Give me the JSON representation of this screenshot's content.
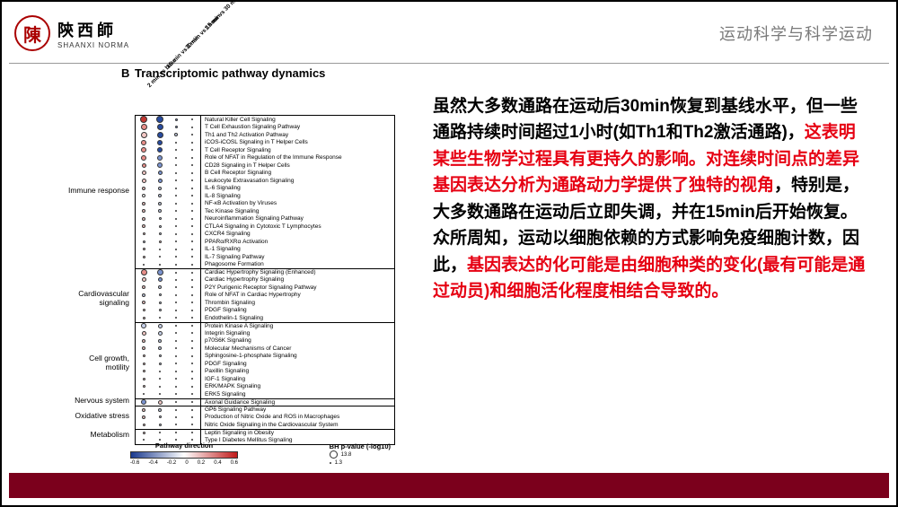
{
  "header": {
    "logo_char": "陳",
    "logo_cn": "陝西師",
    "logo_en": "SHAANXI NORMA",
    "right_text": "运动科学与科学运动"
  },
  "body_text": {
    "p1a": "虽然大多数通路在运动后30min恢复到基线水平，但一些通路持续时间超过1小时(如Th1和Th2激活通路)，",
    "p1b_red": "这表明某些生物学过程具有更持久的影响。对连续时间点的差异基因表达分析为通路动力学提供了独特的视角",
    "p1c": "，特别是，大多数通路在运动后立即失调，并在15min后开始恢复。众所周知，运动以细胞依赖的方式影响免疫细胞计数，因此，",
    "p1d_red": "基因表达的化可能是由细胞种类的变化(最有可能是通过动员)和细胞活化程度相结合导致的。"
  },
  "figure": {
    "panel_label": "B",
    "title": "Transcriptomic pathway dynamics",
    "columns": [
      "2 min vs base",
      "15 min vs 2 min",
      "30 min vs 15 min",
      "1 hour vs 30 min"
    ],
    "legend": {
      "direction_label": "Pathway direction",
      "direction_ticks": [
        "-0.6",
        "-0.4",
        "-0.2",
        "0",
        "0.2",
        "0.4",
        "0.6"
      ],
      "pval_label": "BH p-value (-log10)",
      "pval_sizes": [
        {
          "size": 9,
          "label": "13.8"
        },
        {
          "size": 2,
          "label": "1.3"
        }
      ]
    },
    "colors": {
      "neg_strong": "#274b9f",
      "neg_mid": "#7a93cf",
      "neg_weak": "#c7d1ea",
      "neutral": "#ffffff",
      "pos_weak": "#f3c8c5",
      "pos_mid": "#e88e89",
      "pos_strong": "#c23631"
    },
    "categories": [
      {
        "name": "Immune response",
        "start": 0,
        "end": 20
      },
      {
        "name": "Cardiovascular signaling",
        "start": 20,
        "end": 27
      },
      {
        "name": "Cell growth, motility",
        "start": 27,
        "end": 37
      },
      {
        "name": "Nervous system",
        "start": 37,
        "end": 38
      },
      {
        "name": "Oxidative stress",
        "start": 38,
        "end": 41
      },
      {
        "name": "Metabolism",
        "start": 41,
        "end": 43
      }
    ],
    "rows": [
      {
        "name": "Natural Killer Cell Signaling",
        "d": [
          {
            "c": "pos_strong",
            "s": 8
          },
          {
            "c": "neg_strong",
            "s": 8
          },
          {
            "c": "neg_mid",
            "s": 3
          },
          {
            "c": "neutral",
            "s": 1
          }
        ]
      },
      {
        "name": "T Cell Exhaustion Signaling Pathway",
        "d": [
          {
            "c": "pos_mid",
            "s": 7
          },
          {
            "c": "neg_strong",
            "s": 7
          },
          {
            "c": "neg_mid",
            "s": 3
          },
          {
            "c": "neutral",
            "s": 1
          }
        ]
      },
      {
        "name": "Th1 and Th2 Activation Pathway",
        "d": [
          {
            "c": "pos_weak",
            "s": 7
          },
          {
            "c": "neg_strong",
            "s": 7
          },
          {
            "c": "neg_weak",
            "s": 4
          },
          {
            "c": "neg_weak",
            "s": 2
          }
        ]
      },
      {
        "name": "iCOS-iCOSL Signaling in T Helper Cells",
        "d": [
          {
            "c": "pos_mid",
            "s": 6
          },
          {
            "c": "neg_strong",
            "s": 6
          },
          {
            "c": "neutral",
            "s": 2
          },
          {
            "c": "neutral",
            "s": 1
          }
        ]
      },
      {
        "name": "T Cell Receptor Signaling",
        "d": [
          {
            "c": "pos_mid",
            "s": 6
          },
          {
            "c": "neg_strong",
            "s": 6
          },
          {
            "c": "neutral",
            "s": 2
          },
          {
            "c": "neutral",
            "s": 1
          }
        ]
      },
      {
        "name": "Role of NFAT in Regulation of the Immune Response",
        "d": [
          {
            "c": "pos_mid",
            "s": 6
          },
          {
            "c": "neg_mid",
            "s": 6
          },
          {
            "c": "neutral",
            "s": 2
          },
          {
            "c": "neutral",
            "s": 1
          }
        ]
      },
      {
        "name": "CD28 Signaling in T Helper Cells",
        "d": [
          {
            "c": "pos_mid",
            "s": 5
          },
          {
            "c": "neg_mid",
            "s": 6
          },
          {
            "c": "neutral",
            "s": 2
          },
          {
            "c": "neutral",
            "s": 1
          }
        ]
      },
      {
        "name": "B Cell Receptor Signaling",
        "d": [
          {
            "c": "pos_weak",
            "s": 5
          },
          {
            "c": "neg_mid",
            "s": 5
          },
          {
            "c": "neutral",
            "s": 2
          },
          {
            "c": "neutral",
            "s": 1
          }
        ]
      },
      {
        "name": "Leukocyte Extravasation Signaling",
        "d": [
          {
            "c": "pos_weak",
            "s": 5
          },
          {
            "c": "neg_mid",
            "s": 5
          },
          {
            "c": "neutral",
            "s": 2
          },
          {
            "c": "neutral",
            "s": 1
          }
        ]
      },
      {
        "name": "IL-6 Signaling",
        "d": [
          {
            "c": "pos_weak",
            "s": 4
          },
          {
            "c": "neg_weak",
            "s": 4
          },
          {
            "c": "neutral",
            "s": 2
          },
          {
            "c": "neutral",
            "s": 1
          }
        ]
      },
      {
        "name": "IL-8 Signaling",
        "d": [
          {
            "c": "neutral",
            "s": 4
          },
          {
            "c": "neg_weak",
            "s": 4
          },
          {
            "c": "neutral",
            "s": 1
          },
          {
            "c": "neutral",
            "s": 1
          }
        ]
      },
      {
        "name": "NF-κB Activation by Viruses",
        "d": [
          {
            "c": "pos_weak",
            "s": 4
          },
          {
            "c": "neg_weak",
            "s": 4
          },
          {
            "c": "neutral",
            "s": 1
          },
          {
            "c": "neutral",
            "s": 1
          }
        ]
      },
      {
        "name": "Tec Kinase Signaling",
        "d": [
          {
            "c": "pos_weak",
            "s": 4
          },
          {
            "c": "neg_weak",
            "s": 4
          },
          {
            "c": "neutral",
            "s": 1
          },
          {
            "c": "neutral",
            "s": 1
          }
        ]
      },
      {
        "name": "Neuroinflammation Signaling Pathway",
        "d": [
          {
            "c": "pos_weak",
            "s": 4
          },
          {
            "c": "neg_weak",
            "s": 3
          },
          {
            "c": "neutral",
            "s": 1
          },
          {
            "c": "neutral",
            "s": 1
          }
        ]
      },
      {
        "name": "CTLA4 Signaling in Cytotoxic T Lymphocytes",
        "d": [
          {
            "c": "pos_weak",
            "s": 4
          },
          {
            "c": "neg_weak",
            "s": 3
          },
          {
            "c": "neutral",
            "s": 1
          },
          {
            "c": "neutral",
            "s": 1
          }
        ]
      },
      {
        "name": "CXCR4 Signaling",
        "d": [
          {
            "c": "pos_weak",
            "s": 3
          },
          {
            "c": "neg_weak",
            "s": 3
          },
          {
            "c": "neutral",
            "s": 1
          },
          {
            "c": "neutral",
            "s": 1
          }
        ]
      },
      {
        "name": "PPARα/RXRα Activation",
        "d": [
          {
            "c": "neg_weak",
            "s": 3
          },
          {
            "c": "pos_weak",
            "s": 3
          },
          {
            "c": "neutral",
            "s": 1
          },
          {
            "c": "neutral",
            "s": 1
          }
        ]
      },
      {
        "name": "IL-1 Signaling",
        "d": [
          {
            "c": "pos_weak",
            "s": 3
          },
          {
            "c": "neg_weak",
            "s": 2
          },
          {
            "c": "neutral",
            "s": 1
          },
          {
            "c": "neutral",
            "s": 1
          }
        ]
      },
      {
        "name": "IL-7 Signaling Pathway",
        "d": [
          {
            "c": "pos_weak",
            "s": 3
          },
          {
            "c": "neg_weak",
            "s": 2
          },
          {
            "c": "neutral",
            "s": 1
          },
          {
            "c": "neutral",
            "s": 1
          }
        ]
      },
      {
        "name": "Phagosome Formation",
        "d": [
          {
            "c": "neutral",
            "s": 2
          },
          {
            "c": "neutral",
            "s": 2
          },
          {
            "c": "neutral",
            "s": 1
          },
          {
            "c": "neutral",
            "s": 1
          }
        ]
      },
      {
        "name": "Cardiac Hypertrophy Signaling (Enhanced)",
        "d": [
          {
            "c": "pos_mid",
            "s": 7
          },
          {
            "c": "neg_mid",
            "s": 7
          },
          {
            "c": "neutral",
            "s": 2
          },
          {
            "c": "neutral",
            "s": 1
          }
        ]
      },
      {
        "name": "Cardiac Hypertrophy Signaling",
        "d": [
          {
            "c": "pos_weak",
            "s": 5
          },
          {
            "c": "neg_mid",
            "s": 5
          },
          {
            "c": "neutral",
            "s": 2
          },
          {
            "c": "neutral",
            "s": 1
          }
        ]
      },
      {
        "name": "P2Y Purigenic Receptor Signaling Pathway",
        "d": [
          {
            "c": "pos_weak",
            "s": 4
          },
          {
            "c": "neg_weak",
            "s": 4
          },
          {
            "c": "neutral",
            "s": 1
          },
          {
            "c": "neutral",
            "s": 1
          }
        ]
      },
      {
        "name": "Role of NFAT in Cardiac Hypertrophy",
        "d": [
          {
            "c": "neg_weak",
            "s": 4
          },
          {
            "c": "neg_weak",
            "s": 3
          },
          {
            "c": "neutral",
            "s": 1
          },
          {
            "c": "neutral",
            "s": 1
          }
        ]
      },
      {
        "name": "Thrombin Signaling",
        "d": [
          {
            "c": "pos_weak",
            "s": 4
          },
          {
            "c": "neg_weak",
            "s": 3
          },
          {
            "c": "neutral",
            "s": 1
          },
          {
            "c": "neutral",
            "s": 1
          }
        ]
      },
      {
        "name": "PDGF Signaling",
        "d": [
          {
            "c": "pos_weak",
            "s": 3
          },
          {
            "c": "neg_weak",
            "s": 3
          },
          {
            "c": "neutral",
            "s": 1
          },
          {
            "c": "neutral",
            "s": 1
          }
        ]
      },
      {
        "name": "Endothelin-1 Signaling",
        "d": [
          {
            "c": "pos_weak",
            "s": 3
          },
          {
            "c": "neg_weak",
            "s": 2
          },
          {
            "c": "neutral",
            "s": 1
          },
          {
            "c": "neutral",
            "s": 1
          }
        ]
      },
      {
        "name": "Protein Kinase A Signaling",
        "d": [
          {
            "c": "neg_weak",
            "s": 6
          },
          {
            "c": "neg_weak",
            "s": 5
          },
          {
            "c": "neutral",
            "s": 2
          },
          {
            "c": "neutral",
            "s": 1
          }
        ]
      },
      {
        "name": "Integrin Signaling",
        "d": [
          {
            "c": "pos_weak",
            "s": 5
          },
          {
            "c": "neg_weak",
            "s": 5
          },
          {
            "c": "neutral",
            "s": 2
          },
          {
            "c": "neutral",
            "s": 1
          }
        ]
      },
      {
        "name": "p70S6K Signaling",
        "d": [
          {
            "c": "pos_weak",
            "s": 4
          },
          {
            "c": "neg_weak",
            "s": 4
          },
          {
            "c": "neutral",
            "s": 1
          },
          {
            "c": "neutral",
            "s": 1
          }
        ]
      },
      {
        "name": "Molecular Mechanisms of Cancer",
        "d": [
          {
            "c": "pos_weak",
            "s": 4
          },
          {
            "c": "neg_weak",
            "s": 4
          },
          {
            "c": "neutral",
            "s": 1
          },
          {
            "c": "neutral",
            "s": 1
          }
        ]
      },
      {
        "name": "Sphingosine-1-phosphate Signaling",
        "d": [
          {
            "c": "pos_weak",
            "s": 3
          },
          {
            "c": "neg_weak",
            "s": 3
          },
          {
            "c": "neutral",
            "s": 1
          },
          {
            "c": "neutral",
            "s": 1
          }
        ]
      },
      {
        "name": "PDGF Signaling",
        "d": [
          {
            "c": "pos_weak",
            "s": 3
          },
          {
            "c": "neg_weak",
            "s": 3
          },
          {
            "c": "neutral",
            "s": 1
          },
          {
            "c": "neutral",
            "s": 1
          }
        ]
      },
      {
        "name": "Paxillin Signaling",
        "d": [
          {
            "c": "pos_weak",
            "s": 3
          },
          {
            "c": "neg_weak",
            "s": 2
          },
          {
            "c": "neutral",
            "s": 1
          },
          {
            "c": "neutral",
            "s": 1
          }
        ]
      },
      {
        "name": "IGF-1 Signaling",
        "d": [
          {
            "c": "pos_weak",
            "s": 3
          },
          {
            "c": "neg_weak",
            "s": 2
          },
          {
            "c": "neutral",
            "s": 1
          },
          {
            "c": "neutral",
            "s": 1
          }
        ]
      },
      {
        "name": "ERK/MAPK Signaling",
        "d": [
          {
            "c": "pos_weak",
            "s": 3
          },
          {
            "c": "neg_weak",
            "s": 2
          },
          {
            "c": "neutral",
            "s": 1
          },
          {
            "c": "neutral",
            "s": 1
          }
        ]
      },
      {
        "name": "ERK5 Signaling",
        "d": [
          {
            "c": "pos_weak",
            "s": 2
          },
          {
            "c": "neg_weak",
            "s": 2
          },
          {
            "c": "neutral",
            "s": 1
          },
          {
            "c": "neutral",
            "s": 1
          }
        ]
      },
      {
        "name": "Axonal Guidance Signaling",
        "d": [
          {
            "c": "neg_mid",
            "s": 6
          },
          {
            "c": "pos_weak",
            "s": 5
          },
          {
            "c": "neutral",
            "s": 2
          },
          {
            "c": "neutral",
            "s": 1
          }
        ]
      },
      {
        "name": "GP6 Signaling Pathway",
        "d": [
          {
            "c": "pos_weak",
            "s": 4
          },
          {
            "c": "neg_weak",
            "s": 4
          },
          {
            "c": "neutral",
            "s": 1
          },
          {
            "c": "neutral",
            "s": 1
          }
        ]
      },
      {
        "name": "Production of Nitric Oxide and ROS in Macrophages",
        "d": [
          {
            "c": "pos_weak",
            "s": 4
          },
          {
            "c": "neg_weak",
            "s": 3
          },
          {
            "c": "neutral",
            "s": 1
          },
          {
            "c": "neutral",
            "s": 1
          }
        ]
      },
      {
        "name": "Nitric Oxide Signaling in the Cardiovascular System",
        "d": [
          {
            "c": "pos_weak",
            "s": 3
          },
          {
            "c": "neg_weak",
            "s": 3
          },
          {
            "c": "neutral",
            "s": 1
          },
          {
            "c": "neutral",
            "s": 1
          }
        ]
      },
      {
        "name": "Leptin Signaling in Obesity",
        "d": [
          {
            "c": "pos_weak",
            "s": 3
          },
          {
            "c": "neg_weak",
            "s": 2
          },
          {
            "c": "neutral",
            "s": 1
          },
          {
            "c": "neutral",
            "s": 1
          }
        ]
      },
      {
        "name": "Type I Diabetes Mellitus Signaling",
        "d": [
          {
            "c": "pos_weak",
            "s": 2
          },
          {
            "c": "neg_weak",
            "s": 2
          },
          {
            "c": "neutral",
            "s": 1
          },
          {
            "c": "neutral",
            "s": 1
          }
        ]
      }
    ]
  }
}
